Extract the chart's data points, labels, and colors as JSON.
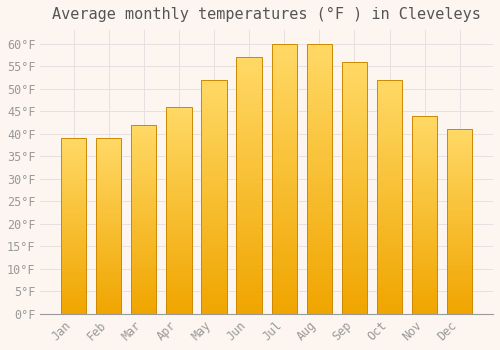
{
  "title": "Average monthly temperatures (°F ) in Cleveleys",
  "months": [
    "Jan",
    "Feb",
    "Mar",
    "Apr",
    "May",
    "Jun",
    "Jul",
    "Aug",
    "Sep",
    "Oct",
    "Nov",
    "Dec"
  ],
  "values": [
    39,
    39,
    42,
    46,
    52,
    57,
    60,
    60,
    56,
    52,
    44,
    41
  ],
  "bar_color_top": "#FFD966",
  "bar_color_bottom": "#F0A500",
  "bar_edge_color": "#CC8800",
  "background_color": "#FDF6F0",
  "grid_color": "#E8E0E0",
  "tick_label_color": "#999999",
  "title_color": "#555555",
  "ylim": [
    0,
    63
  ],
  "yticks": [
    0,
    5,
    10,
    15,
    20,
    25,
    30,
    35,
    40,
    45,
    50,
    55,
    60
  ],
  "title_fontsize": 11,
  "tick_fontsize": 8.5,
  "font_family": "monospace",
  "bar_width": 0.72
}
